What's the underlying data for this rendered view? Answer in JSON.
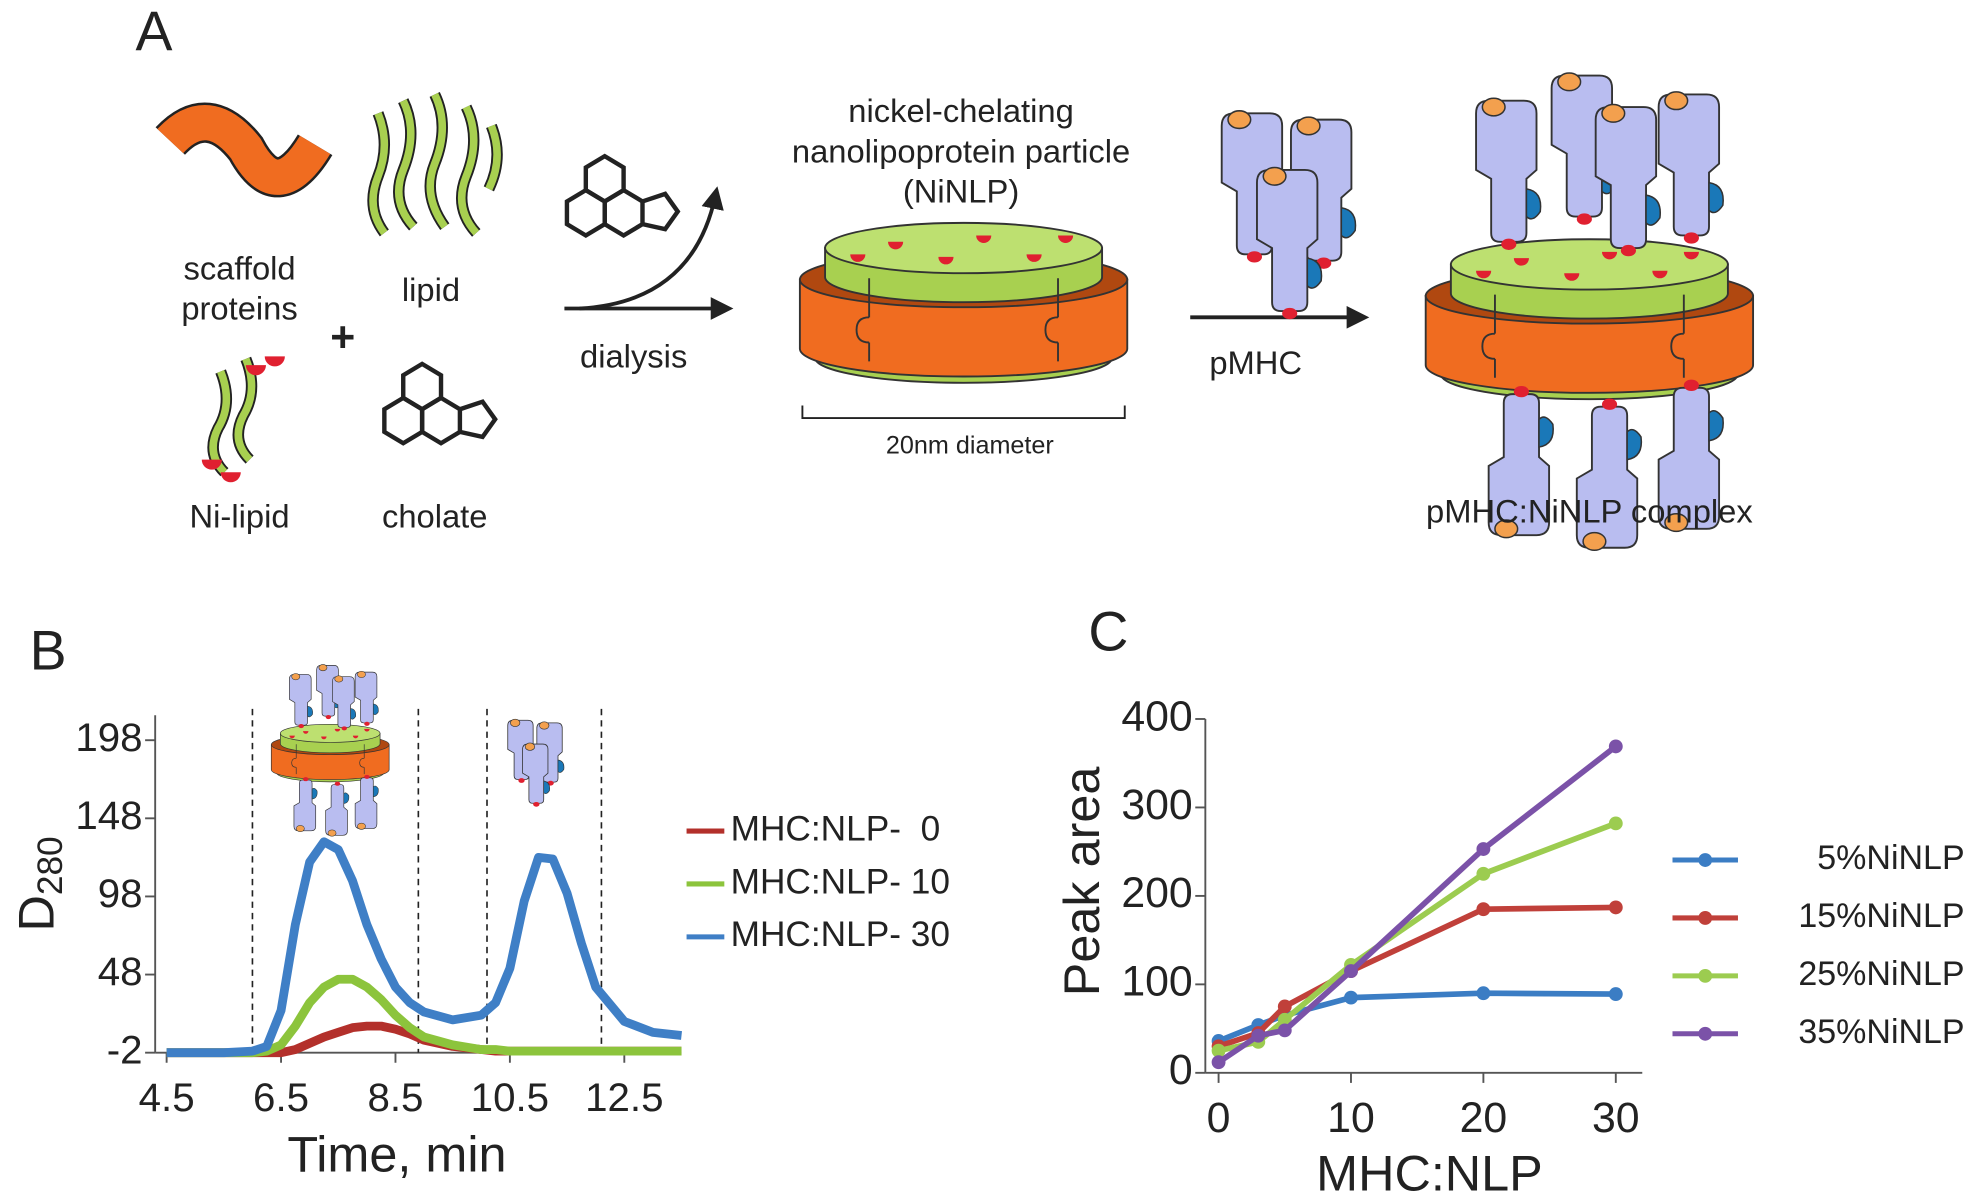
{
  "panel_a": {
    "label": "A",
    "scaffold": [
      "scaffold",
      "proteins"
    ],
    "lipid": "lipid",
    "plus": "+",
    "ni_lipid": "Ni-lipid",
    "cholate": "cholate",
    "dialysis": "dialysis",
    "ninlp": [
      "nickel-chelating",
      "nanolipoprotein particle",
      "(NiNLP)"
    ],
    "diameter": "20nm diameter",
    "pmhc": "pMHC",
    "complex": "pMHC:NiNLP complex"
  },
  "chart_data": [
    {
      "type": "line",
      "panel": "B",
      "xlabel": "Time, min",
      "ylabel": "D",
      "ylabel_sub": "280",
      "x": [
        4.5,
        5,
        5.5,
        6,
        6.25,
        6.5,
        6.75,
        7,
        7.25,
        7.5,
        7.75,
        8,
        8.25,
        8.5,
        8.75,
        9,
        9.5,
        10,
        10.25,
        10.5,
        10.75,
        11,
        11.25,
        11.5,
        11.75,
        12,
        12.5,
        13,
        13.5
      ],
      "series": [
        {
          "name": "MHC:NLP-  0",
          "color": "#b3302b",
          "values": [
            -2,
            -2,
            -2,
            -2,
            -2,
            -2,
            0,
            4,
            8,
            11,
            14,
            15,
            15,
            13,
            10,
            6,
            2,
            0,
            -1,
            -1,
            -1,
            -1,
            -1,
            -1,
            -1,
            -1,
            -1,
            -1,
            -1
          ]
        },
        {
          "name": "MHC:NLP- 10",
          "color": "#8cc43c",
          "values": [
            -2,
            -2,
            -2,
            -2,
            -1,
            3,
            15,
            30,
            40,
            45,
            45,
            40,
            32,
            22,
            14,
            8,
            3,
            0,
            0,
            -1,
            -1,
            -1,
            -1,
            -1,
            -1,
            -1,
            -1,
            -1,
            -1
          ]
        },
        {
          "name": "MHC:NLP- 30",
          "color": "#3f7fc6",
          "values": [
            -2,
            -2,
            -2,
            -1,
            2,
            25,
            80,
            120,
            133,
            128,
            108,
            80,
            58,
            40,
            30,
            24,
            19,
            22,
            30,
            52,
            95,
            123,
            122,
            100,
            68,
            40,
            18,
            11,
            9
          ]
        }
      ],
      "reference_lines": [
        6.0,
        8.9,
        10.1,
        12.1
      ],
      "xlim": [
        4.3,
        13.5
      ],
      "xticks": [
        4.5,
        6.5,
        8.5,
        10.5,
        12.5
      ],
      "ylim": [
        -2,
        214
      ],
      "yticks": [
        -2,
        48,
        98,
        148,
        198
      ]
    },
    {
      "type": "line",
      "panel": "C",
      "markers": true,
      "xlabel": "MHC:NLP",
      "ylabel": "Peak area",
      "x": [
        0,
        3,
        5,
        10,
        20,
        30
      ],
      "series": [
        {
          "name": "5%NiNLP",
          "color": "#3b7dc4",
          "values": [
            36,
            54,
            65,
            85,
            90,
            89
          ]
        },
        {
          "name": "15%NiNLP",
          "color": "#c0403a",
          "values": [
            30,
            45,
            75,
            115,
            185,
            187
          ]
        },
        {
          "name": "25%NiNLP",
          "color": "#9ccc50",
          "values": [
            25,
            35,
            60,
            122,
            225,
            282
          ]
        },
        {
          "name": "35%NiNLP",
          "color": "#7b52a8",
          "values": [
            12,
            42,
            48,
            115,
            253,
            369
          ]
        }
      ],
      "xlim": [
        -1,
        32
      ],
      "xticks": [
        0,
        10,
        20,
        30
      ],
      "ylim": [
        0,
        400
      ],
      "yticks": [
        0,
        100,
        200,
        300,
        400
      ]
    }
  ]
}
